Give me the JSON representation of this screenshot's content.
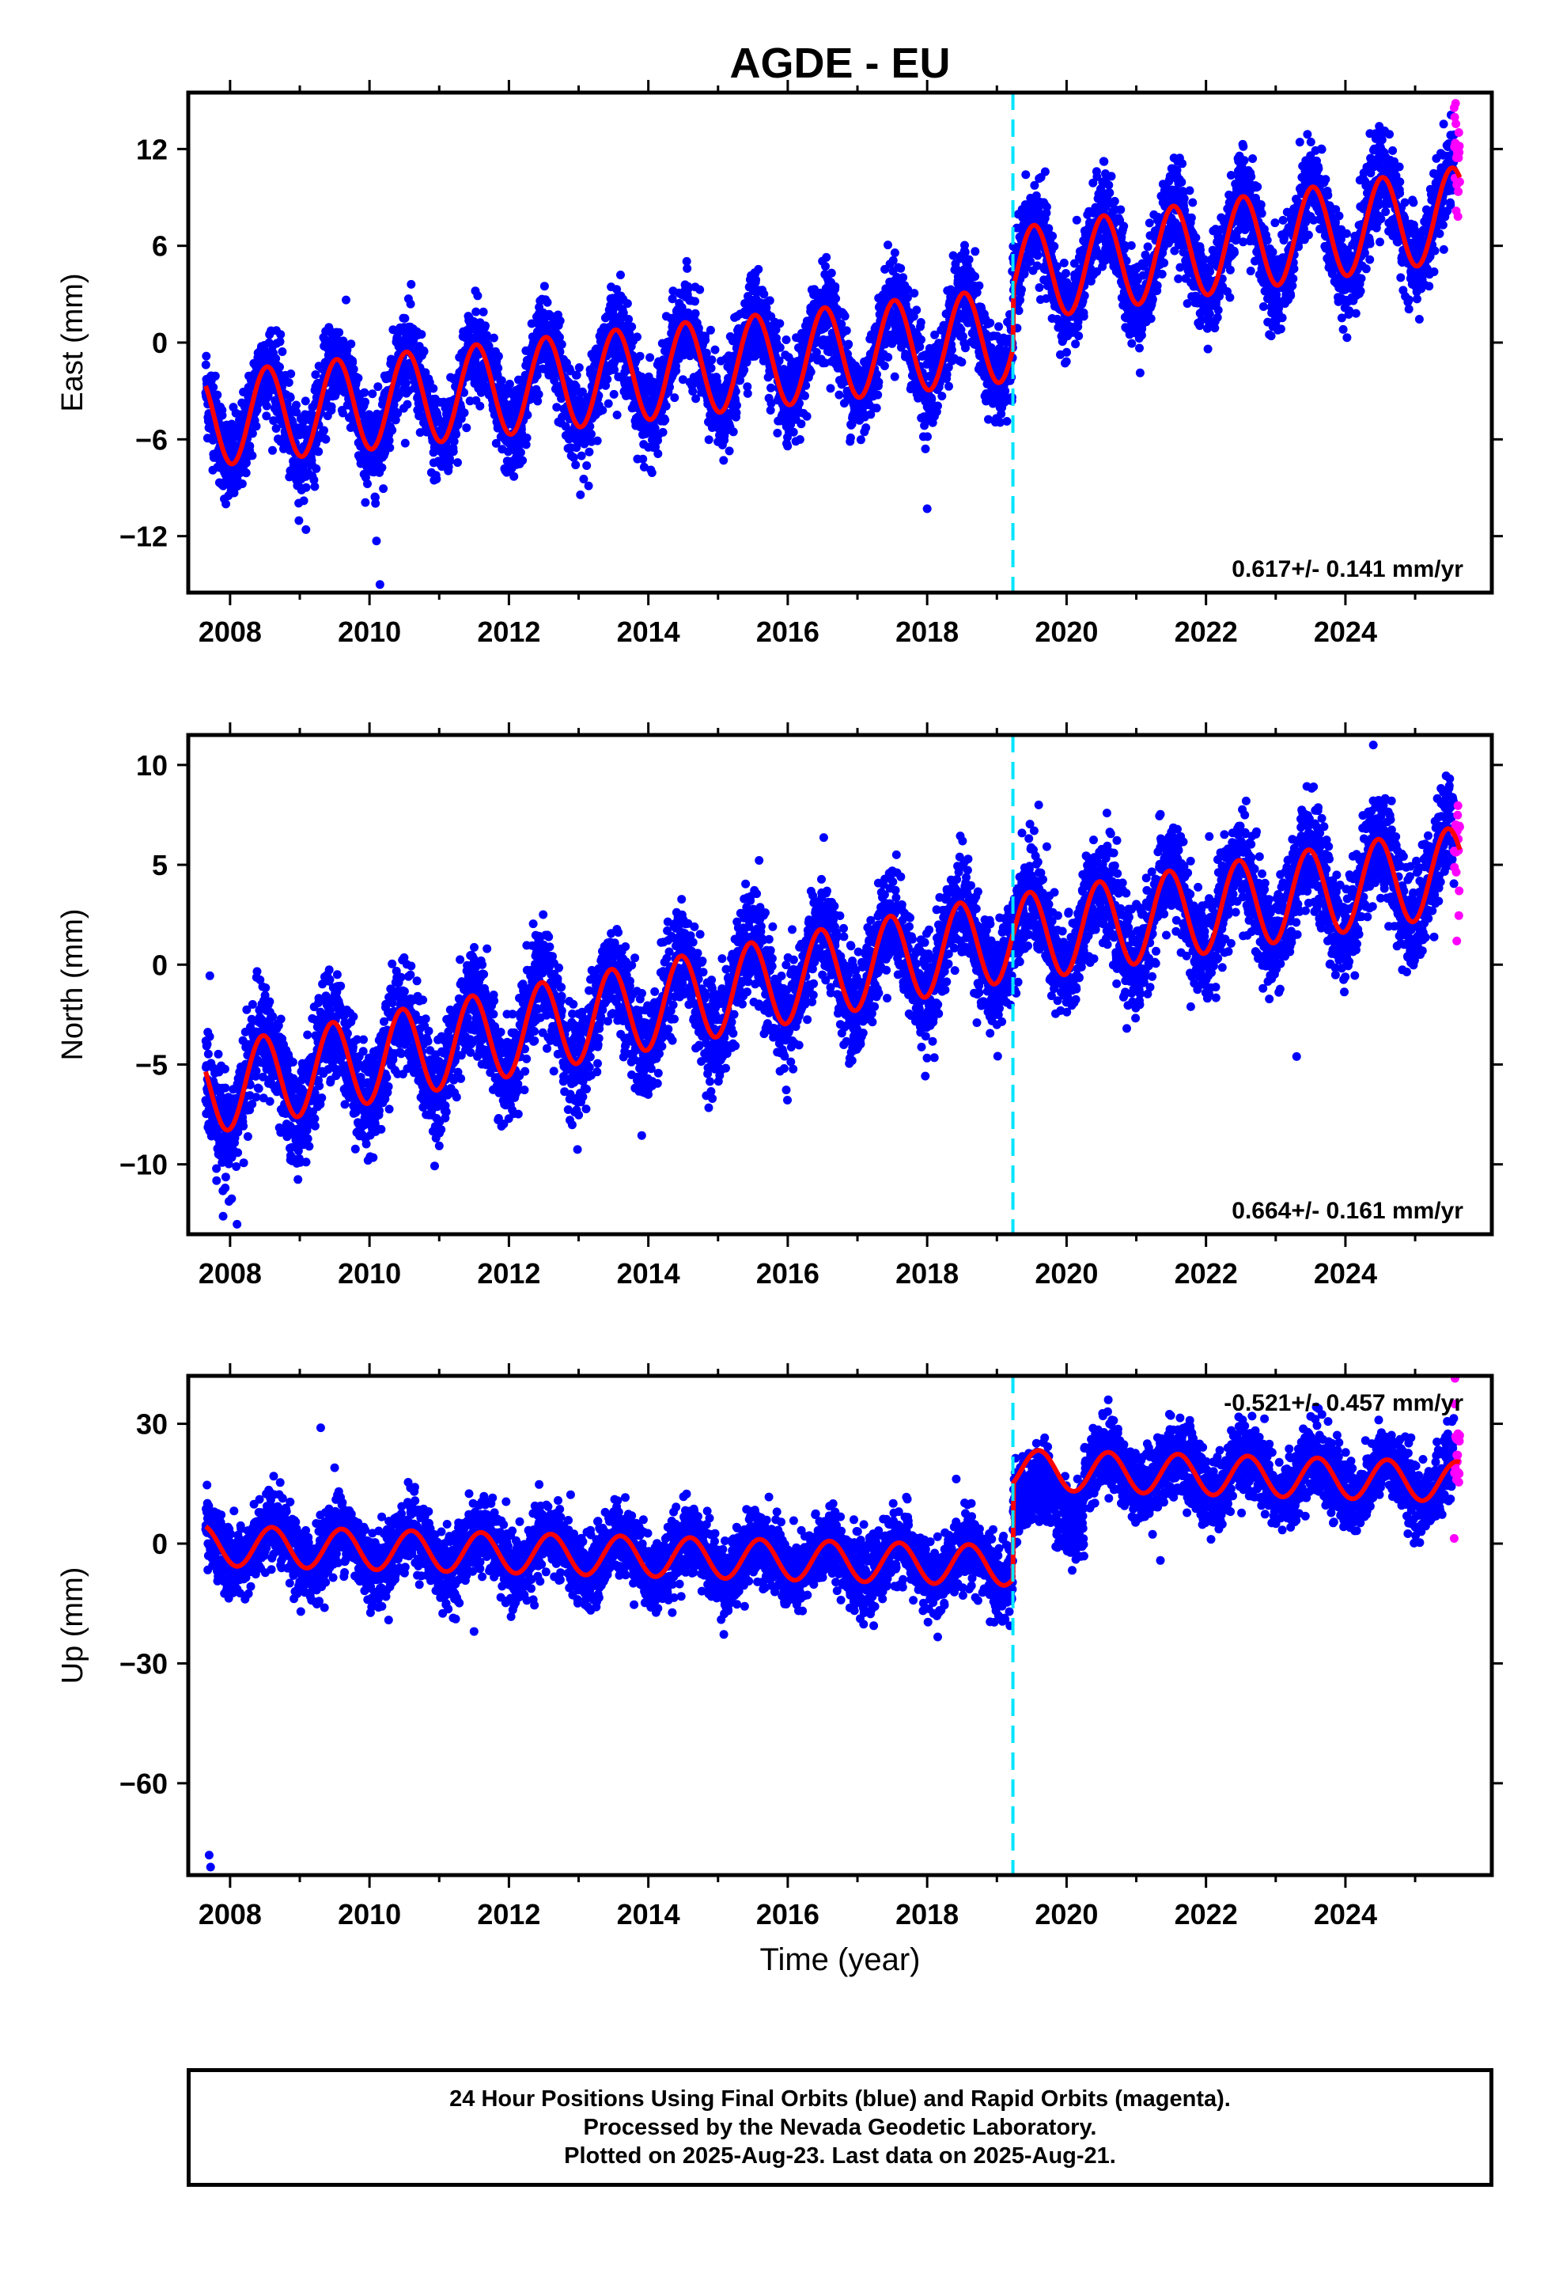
{
  "figure": {
    "title": "AGDE - EU",
    "x_axis_label": "Time (year)",
    "colors": {
      "final_orbits": "#0000ff",
      "rapid_orbits": "#ff00ff",
      "model_fit": "#ff0000",
      "equipment_change": "#00e5ff",
      "frame": "#000000"
    }
  },
  "chart_data": [
    {
      "type": "scatter",
      "component": "East",
      "ylabel": "East (mm)",
      "xlim": [
        2007.4,
        2026.1
      ],
      "ylim": [
        -15.5,
        15.5
      ],
      "yticks": [
        12,
        6,
        0,
        -6,
        -12
      ],
      "ytick_labels": [
        "12",
        "6",
        "0",
        "−6",
        "−12"
      ],
      "xticks": [
        2008,
        2010,
        2012,
        2014,
        2016,
        2018,
        2020,
        2022,
        2024
      ],
      "rate_label": "0.617+/- 0.141 mm/yr",
      "equipment_change_x": 2019.23,
      "data_end_x": 2025.64,
      "rapid_start_x": 2025.56,
      "model": {
        "segments": [
          {
            "x_start": 2007.65,
            "x_end": 2019.23,
            "trend_start": -4.8,
            "trend_end": 0.5
          },
          {
            "x_start": 2019.23,
            "x_end": 2025.64,
            "trend_start": 4.2,
            "trend_end": 8.0
          }
        ],
        "annual_amplitude": 2.9,
        "peak_phase_year": 0.53
      },
      "scatter_spread": 1.4,
      "outliers": [
        [
          2010.1,
          -12.3
        ],
        [
          2010.15,
          -15.0
        ],
        [
          2018.0,
          -10.3
        ]
      ],
      "series": [
        {
          "name": "Final Orbits",
          "color": "#0000ff"
        },
        {
          "name": "Rapid Orbits",
          "color": "#ff00ff"
        }
      ]
    },
    {
      "type": "scatter",
      "component": "North",
      "ylabel": "North (mm)",
      "xlim": [
        2007.4,
        2026.1
      ],
      "ylim": [
        -13.5,
        11.5
      ],
      "yticks": [
        10,
        5,
        0,
        -5,
        -10
      ],
      "ytick_labels": [
        "10",
        "5",
        "0",
        "−5",
        "−10"
      ],
      "xticks": [
        2008,
        2010,
        2012,
        2014,
        2016,
        2018,
        2020,
        2022,
        2024
      ],
      "rate_label": "0.664+/- 0.161 mm/yr",
      "equipment_change_x": 2019.23,
      "data_end_x": 2025.64,
      "rapid_start_x": 2025.56,
      "model": {
        "segments": [
          {
            "x_start": 2007.65,
            "x_end": 2019.23,
            "trend_start": -6.3,
            "trend_end": 1.4
          },
          {
            "x_start": 2019.23,
            "x_end": 2025.64,
            "trend_start": 1.3,
            "trend_end": 4.7
          }
        ],
        "annual_amplitude": 2.2,
        "peak_phase_year": 0.47
      },
      "scatter_spread": 1.3,
      "outliers": [
        [
          2007.9,
          -12.6
        ],
        [
          2008.1,
          -13.0
        ],
        [
          2023.3,
          -4.6
        ],
        [
          2024.4,
          11.0
        ],
        [
          2019.6,
          8.0
        ]
      ],
      "series": [
        {
          "name": "Final Orbits",
          "color": "#0000ff"
        },
        {
          "name": "Rapid Orbits",
          "color": "#ff00ff"
        }
      ]
    },
    {
      "type": "scatter",
      "component": "Up",
      "ylabel": "Up (mm)",
      "xlim": [
        2007.4,
        2026.1
      ],
      "ylim": [
        -83,
        42
      ],
      "yticks": [
        30,
        0,
        -30,
        -60
      ],
      "ytick_labels": [
        "30",
        "0",
        "−30",
        "−60"
      ],
      "xticks": [
        2008,
        2010,
        2012,
        2014,
        2016,
        2018,
        2020,
        2022,
        2024
      ],
      "rate_label": "-0.521+/- 0.457 mm/yr",
      "equipment_change_x": 2019.23,
      "data_end_x": 2025.64,
      "rapid_start_x": 2025.56,
      "model": {
        "segments": [
          {
            "x_start": 2007.65,
            "x_end": 2019.23,
            "trend_start": -0.5,
            "trend_end": -5.5
          },
          {
            "x_start": 2019.23,
            "x_end": 2025.64,
            "trend_start": 18.5,
            "trend_end": 15.5
          }
        ],
        "annual_amplitude": 5.0,
        "peak_phase_year": 0.6
      },
      "scatter_spread": 4.5,
      "outliers": [
        [
          2007.7,
          -78.0
        ],
        [
          2007.72,
          -81.0
        ],
        [
          2009.3,
          29.0
        ],
        [
          2009.5,
          19.0
        ],
        [
          2011.5,
          -22.0
        ]
      ],
      "gap_dip": {
        "x_start": 2019.23,
        "x_end": 2020.25,
        "offset": -10.0
      },
      "series": [
        {
          "name": "Final Orbits",
          "color": "#0000ff"
        },
        {
          "name": "Rapid Orbits",
          "color": "#ff00ff"
        }
      ]
    }
  ],
  "footer": {
    "line1": "24 Hour Positions Using Final Orbits (blue) and Rapid Orbits (magenta).",
    "line2": "Processed by the Nevada Geodetic Laboratory.",
    "line3": "Plotted on 2025-Aug-23. Last data on 2025-Aug-21."
  }
}
